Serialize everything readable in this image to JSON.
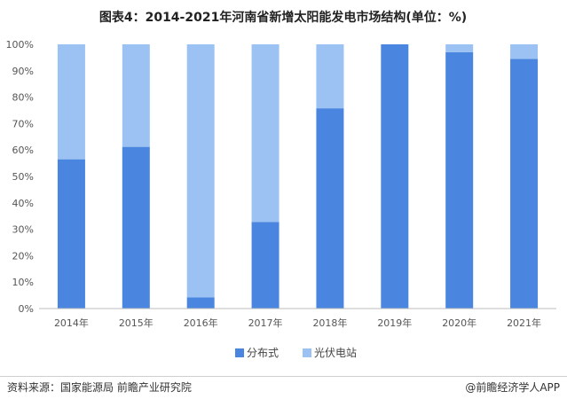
{
  "title": "图表4：2014-2021年河南省新增太阳能发电市场结构(单位：%)",
  "chart_data": {
    "type": "bar",
    "stacked": true,
    "categories": [
      "2014年",
      "2015年",
      "2016年",
      "2017年",
      "2018年",
      "2019年",
      "2020年",
      "2021年"
    ],
    "series": [
      {
        "name": "分布式",
        "values": [
          56.5,
          61.2,
          4.2,
          32.8,
          75.8,
          100,
          97.0,
          94.5
        ]
      },
      {
        "name": "光伏电站",
        "values": [
          43.5,
          38.8,
          95.8,
          67.2,
          24.2,
          0,
          3.0,
          5.5
        ]
      }
    ],
    "y_ticks": [
      "0%",
      "10%",
      "20%",
      "30%",
      "40%",
      "50%",
      "60%",
      "70%",
      "80%",
      "90%",
      "100%"
    ],
    "ylim": [
      0,
      100
    ],
    "legend_position": "bottom",
    "colors": {
      "分布式": "#4a86e0",
      "光伏电站": "#9bc2f2"
    },
    "grid": false
  },
  "footer": {
    "source": "资料来源：国家能源局 前瞻产业研究院",
    "brand": "@前瞻经济学人APP"
  }
}
